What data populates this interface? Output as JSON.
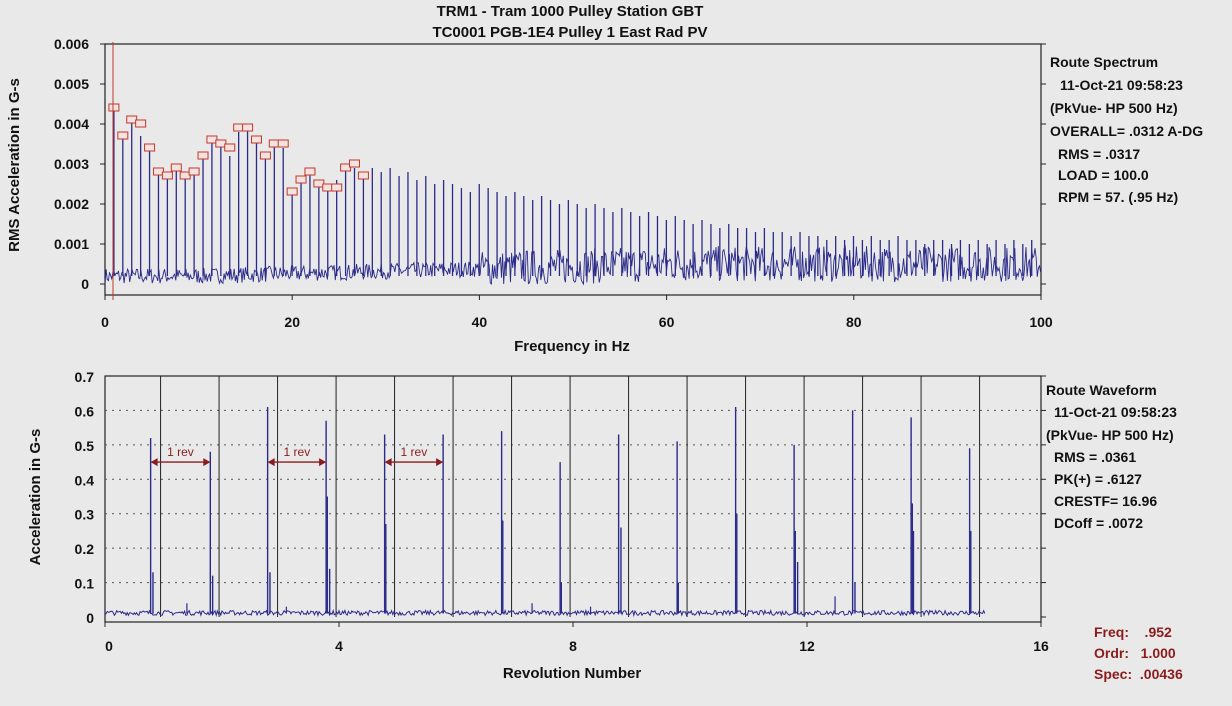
{
  "header": {
    "title_line1": "TRM1 - Tram 1000 Pulley Station GBT",
    "title_line2": "TC0001 PGB-1E4   Pulley 1 East Rad PV"
  },
  "spectrum_info": {
    "lines": [
      "Route Spectrum",
      "11-Oct-21  09:58:23",
      "(PkVue- HP 500 Hz)",
      "OVERALL= .0312 A-DG",
      "RMS =  .0317",
      "LOAD = 100.0",
      "RPM = 57. (.95 Hz)"
    ]
  },
  "waveform_info": {
    "lines": [
      "Route Waveform",
      "11-Oct-21  09:58:23",
      "(PkVue- HP 500 Hz)",
      "RMS =  .0361",
      "PK(+) = .6127",
      "CRESTF= 16.96",
      "DCoff = .0072"
    ]
  },
  "cursor_readout": {
    "lines": [
      "Freq:    .952",
      "Ordr:   1.000",
      "Spec:  .00436"
    ]
  },
  "colors": {
    "trace": "#2a2a8a",
    "marker": "#c0392b",
    "annotation": "#8c1c1c",
    "axis": "#222222",
    "grid": "#555555"
  },
  "chart_data": [
    {
      "type": "line",
      "title": "",
      "xlabel": "Frequency in Hz",
      "ylabel": "RMS Acceleration in G-s",
      "xlim": [
        0,
        100
      ],
      "ylim": [
        0,
        0.006
      ],
      "x_ticks": [
        "0",
        "20",
        "40",
        "60",
        "80",
        "100"
      ],
      "y_ticks": [
        "0",
        "0.001",
        "0.002",
        "0.003",
        "0.004",
        "0.005",
        "0.006"
      ],
      "harmonic_spacing_hz": 0.952,
      "noise_floor": 0.0002,
      "harmonic_peaks": [
        0.0044,
        0.0037,
        0.0041,
        0.0037,
        0.0034,
        0.0028,
        0.0027,
        0.0029,
        0.0027,
        0.0028,
        0.0032,
        0.0036,
        0.0035,
        0.0032,
        0.0038,
        0.0039,
        0.0036,
        0.0033,
        0.0035,
        0.0034,
        0.0024,
        0.0027,
        0.0028,
        0.0026,
        0.0025,
        0.0026,
        0.003,
        0.0029,
        0.0028,
        0.0029,
        0.0028,
        0.0029,
        0.0027,
        0.0028,
        0.0026,
        0.0027,
        0.0025,
        0.0026,
        0.0025,
        0.0024,
        0.0023,
        0.0025,
        0.0024,
        0.0023,
        0.0022,
        0.0023,
        0.0022,
        0.0021,
        0.0022,
        0.0021,
        0.002,
        0.0021,
        0.002,
        0.0019,
        0.002,
        0.0019,
        0.0018,
        0.0019,
        0.0018,
        0.0017,
        0.0018,
        0.0017,
        0.0016,
        0.0017,
        0.0016,
        0.0015,
        0.0016,
        0.0015,
        0.0014,
        0.0015,
        0.0014,
        0.0014,
        0.0013,
        0.0014,
        0.0013,
        0.0013,
        0.0012,
        0.0013,
        0.0012,
        0.0012,
        0.0011,
        0.0012,
        0.0011,
        0.0012,
        0.0011,
        0.0012,
        0.0011,
        0.0011,
        0.0012,
        0.0011,
        0.0011,
        0.001,
        0.0011,
        0.0011,
        0.001,
        0.0011,
        0.001,
        0.0011,
        0.001,
        0.0011,
        0.001,
        0.0011,
        0.001,
        0.0011
      ],
      "marked_peaks": [
        0.0044,
        0.0037,
        0.0041,
        0.004,
        0.0034,
        0.0028,
        0.0027,
        0.0029,
        0.0027,
        0.0028,
        0.0032,
        0.0036,
        0.0035,
        0.0034,
        0.0039,
        0.0039,
        0.0036,
        0.0032,
        0.0035,
        0.0035,
        0.0023,
        0.0026,
        0.0028,
        0.0025,
        0.0024,
        0.0024,
        0.0029,
        0.003,
        0.0027
      ]
    },
    {
      "type": "line",
      "title": "",
      "xlabel": "Revolution Number",
      "ylabel": "Acceleration in G-s",
      "xlim": [
        0,
        16
      ],
      "ylim": [
        0,
        0.7
      ],
      "x_ticks": [
        "0",
        "4",
        "8",
        "12",
        "16"
      ],
      "y_ticks": [
        "0",
        "0.1",
        "0.2",
        "0.3",
        "0.4",
        "0.5",
        "0.6",
        "0.7"
      ],
      "revolution_markers": [
        0.95,
        1.95,
        2.95,
        3.95,
        4.95,
        5.95,
        6.95,
        7.95,
        8.95,
        9.95,
        10.95,
        11.95,
        12.95,
        13.95,
        14.95
      ],
      "impacts": [
        {
          "x": 0.78,
          "y": 0.52
        },
        {
          "x": 0.82,
          "y": 0.13
        },
        {
          "x": 1.8,
          "y": 0.48
        },
        {
          "x": 1.84,
          "y": 0.12
        },
        {
          "x": 2.78,
          "y": 0.61
        },
        {
          "x": 2.82,
          "y": 0.13
        },
        {
          "x": 3.78,
          "y": 0.57
        },
        {
          "x": 3.8,
          "y": 0.35
        },
        {
          "x": 3.84,
          "y": 0.14
        },
        {
          "x": 4.78,
          "y": 0.53
        },
        {
          "x": 4.8,
          "y": 0.27
        },
        {
          "x": 5.78,
          "y": 0.53
        },
        {
          "x": 6.78,
          "y": 0.54
        },
        {
          "x": 6.8,
          "y": 0.28
        },
        {
          "x": 7.78,
          "y": 0.45
        },
        {
          "x": 7.8,
          "y": 0.1
        },
        {
          "x": 8.78,
          "y": 0.53
        },
        {
          "x": 8.82,
          "y": 0.26
        },
        {
          "x": 9.78,
          "y": 0.51
        },
        {
          "x": 9.8,
          "y": 0.1
        },
        {
          "x": 10.78,
          "y": 0.61
        },
        {
          "x": 10.8,
          "y": 0.3
        },
        {
          "x": 11.78,
          "y": 0.5
        },
        {
          "x": 11.8,
          "y": 0.25
        },
        {
          "x": 11.84,
          "y": 0.16
        },
        {
          "x": 12.78,
          "y": 0.6
        },
        {
          "x": 12.82,
          "y": 0.1
        },
        {
          "x": 13.78,
          "y": 0.58
        },
        {
          "x": 13.8,
          "y": 0.33
        },
        {
          "x": 13.82,
          "y": 0.25
        },
        {
          "x": 14.78,
          "y": 0.49
        },
        {
          "x": 14.8,
          "y": 0.25
        }
      ],
      "small_blips": [
        {
          "x": 1.4,
          "y": 0.04
        },
        {
          "x": 3.1,
          "y": 0.03
        },
        {
          "x": 7.3,
          "y": 0.04
        },
        {
          "x": 12.48,
          "y": 0.06
        },
        {
          "x": 8.3,
          "y": 0.03
        }
      ],
      "trace_end_x": 15.05,
      "annotations": [
        {
          "text": "1 rev",
          "x_start": 0.78,
          "x_end": 1.8,
          "y": 0.45
        },
        {
          "text": "1 rev",
          "x_start": 2.78,
          "x_end": 3.78,
          "y": 0.45
        },
        {
          "text": "1 rev",
          "x_start": 4.78,
          "x_end": 5.78,
          "y": 0.45
        }
      ]
    }
  ]
}
